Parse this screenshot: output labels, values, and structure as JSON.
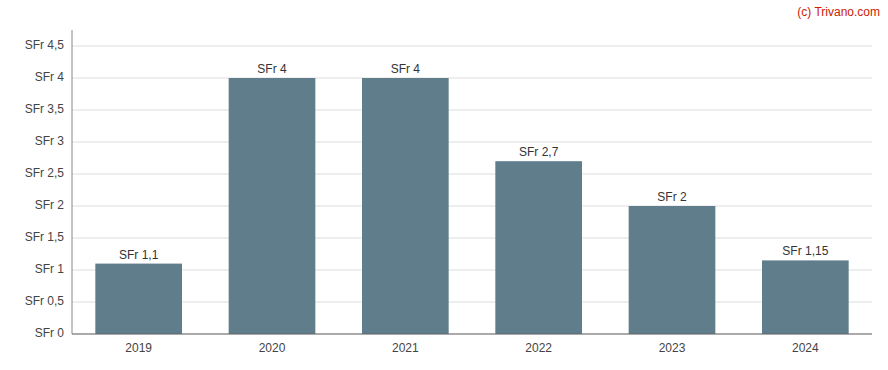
{
  "chart_data": {
    "type": "bar",
    "categories": [
      "2019",
      "2020",
      "2021",
      "2022",
      "2023",
      "2024"
    ],
    "values": [
      1.1,
      4.0,
      4.0,
      2.7,
      2.0,
      1.15
    ],
    "value_labels": [
      "SFr 1,1",
      "SFr 4",
      "SFr 4",
      "SFr 2,7",
      "SFr 2",
      "SFr 1,15"
    ],
    "data_labels": true,
    "color": "#5f7d8b",
    "ylim": [
      0,
      4.75
    ],
    "yticks": [
      {
        "value": 0,
        "label": "SFr 0"
      },
      {
        "value": 0.5,
        "label": "SFr 0,5"
      },
      {
        "value": 1.0,
        "label": "SFr 1"
      },
      {
        "value": 1.5,
        "label": "SFr 1,5"
      },
      {
        "value": 2.0,
        "label": "SFr 2"
      },
      {
        "value": 2.5,
        "label": "SFr 2,5"
      },
      {
        "value": 3.0,
        "label": "SFr 3"
      },
      {
        "value": 3.5,
        "label": "SFr 3,5"
      },
      {
        "value": 4.0,
        "label": "SFr 4"
      },
      {
        "value": 4.5,
        "label": "SFr 4,5"
      }
    ],
    "grid": true,
    "annotations": [
      {
        "text": "(c) Trivano.com",
        "color": "#cc2200"
      }
    ]
  }
}
